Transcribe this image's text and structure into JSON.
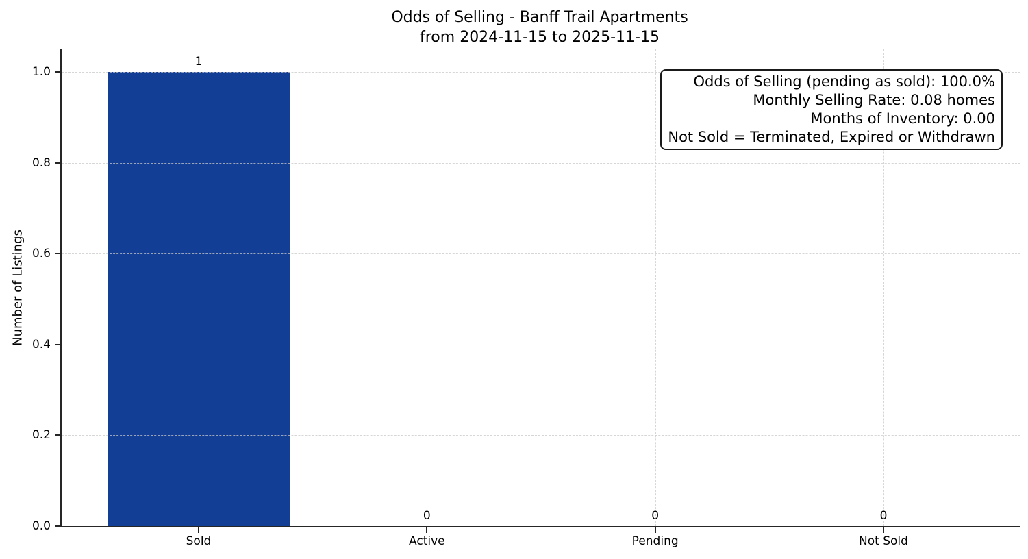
{
  "chart_data": {
    "type": "bar",
    "title": "Odds of Selling - Banff Trail Apartments",
    "subtitle": "from 2024-11-15 to 2025-11-15",
    "categories": [
      "Sold",
      "Active",
      "Pending",
      "Not Sold"
    ],
    "values": [
      1,
      0,
      0,
      0
    ],
    "value_labels": [
      "1",
      "0",
      "0",
      "0"
    ],
    "xlabel": "",
    "ylabel": "Number of Listings",
    "yticks": [
      "0.0",
      "0.2",
      "0.4",
      "0.6",
      "0.8",
      "1.0"
    ],
    "ylim": [
      0,
      1.05
    ],
    "grid": "dashed gridlines on both axes",
    "legend_position": "none",
    "bar_color": "#123e96",
    "axis_color": "#262626",
    "annotation_box": {
      "position": "top-right",
      "lines": [
        "Odds of Selling (pending as sold): 100.0%",
        "Monthly Selling Rate: 0.08 homes",
        "Months of Inventory: 0.00",
        "Not Sold = Terminated, Expired or Withdrawn"
      ]
    }
  }
}
